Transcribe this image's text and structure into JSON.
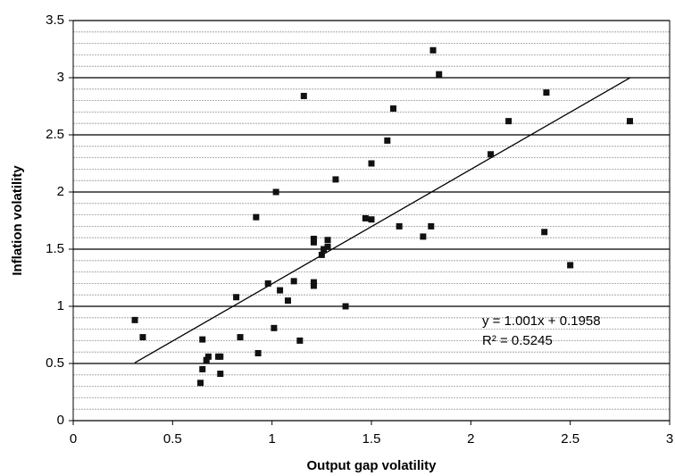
{
  "chart_data": {
    "type": "scatter",
    "x_label": "Output gap volatility",
    "y_label": "Inflation volatility",
    "x": [
      0.31,
      0.35,
      0.65,
      0.65,
      0.64,
      0.67,
      0.68,
      0.73,
      0.74,
      0.74,
      0.82,
      0.84,
      0.92,
      0.93,
      0.98,
      1.01,
      1.02,
      1.04,
      1.08,
      1.11,
      1.14,
      1.16,
      1.21,
      1.21,
      1.21,
      1.21,
      1.25,
      1.26,
      1.28,
      1.28,
      1.32,
      1.37,
      1.47,
      1.5,
      1.5,
      1.58,
      1.61,
      1.64,
      1.76,
      1.8,
      1.81,
      1.84,
      2.1,
      2.19,
      2.37,
      2.38,
      2.5,
      2.8
    ],
    "y": [
      0.88,
      0.73,
      0.71,
      0.45,
      0.33,
      0.53,
      0.56,
      0.56,
      0.56,
      0.41,
      1.08,
      0.73,
      1.78,
      0.59,
      1.2,
      0.81,
      2.0,
      1.14,
      1.05,
      1.22,
      0.7,
      2.84,
      1.18,
      1.21,
      1.59,
      1.56,
      1.45,
      1.5,
      1.52,
      1.58,
      2.11,
      1.0,
      1.77,
      2.25,
      1.76,
      2.45,
      2.73,
      1.7,
      1.61,
      1.7,
      3.24,
      3.03,
      2.33,
      2.62,
      1.65,
      2.87,
      1.36,
      2.62
    ],
    "color": "#111111",
    "xlim": [
      0,
      3
    ],
    "xticks": [
      0,
      0.5,
      1,
      1.5,
      2,
      2.5,
      3
    ],
    "ylim": [
      0,
      3.5
    ],
    "yticks": [
      0,
      0.5,
      1,
      1.5,
      2,
      2.5,
      3,
      3.5
    ],
    "grid": true,
    "minor_grid_step": 0.1,
    "trendline": {
      "slope": 1.001,
      "intercept": 0.1958,
      "x_range": [
        0.31,
        2.8
      ]
    },
    "annotations": [
      "y = 1.001x + 0.1958",
      "R² = 0.5245"
    ]
  }
}
